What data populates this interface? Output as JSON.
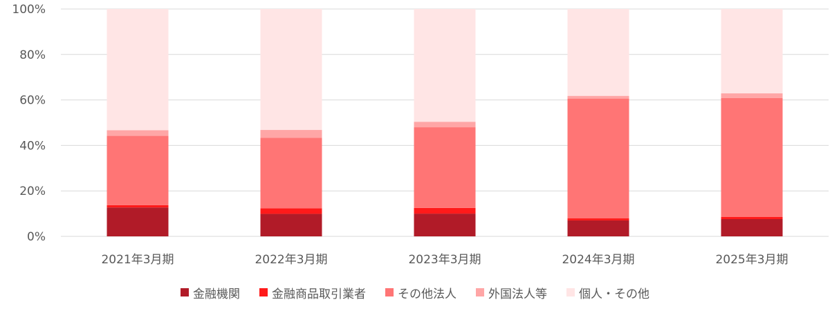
{
  "chart_data": {
    "type": "bar",
    "stacked": true,
    "percent": true,
    "categories": [
      "2021年3月期",
      "2022年3月期",
      "2023年3月期",
      "2024年3月期",
      "2025年3月期"
    ],
    "series": [
      {
        "name": "金融機関",
        "color": "#B11B28",
        "values": [
          12.7,
          9.9,
          10.0,
          7.0,
          7.6
        ]
      },
      {
        "name": "金融商品取引業者",
        "color": "#FF1A1A",
        "values": [
          1.0,
          2.4,
          2.5,
          0.9,
          1.0
        ]
      },
      {
        "name": "その他法人",
        "color": "#FF7575",
        "values": [
          30.5,
          31.1,
          35.5,
          52.7,
          52.2
        ]
      },
      {
        "name": "外国法人等",
        "color": "#FFA6A6",
        "values": [
          2.5,
          3.4,
          2.4,
          1.2,
          2.1
        ]
      },
      {
        "name": "個人・その他",
        "color": "#FFE5E5",
        "values": [
          53.3,
          53.2,
          49.6,
          38.2,
          37.1
        ]
      }
    ],
    "ylim": [
      0,
      100
    ],
    "yticks": [
      "0%",
      "20%",
      "40%",
      "60%",
      "80%",
      "100%"
    ],
    "grid": true,
    "legend_position": "bottom"
  }
}
